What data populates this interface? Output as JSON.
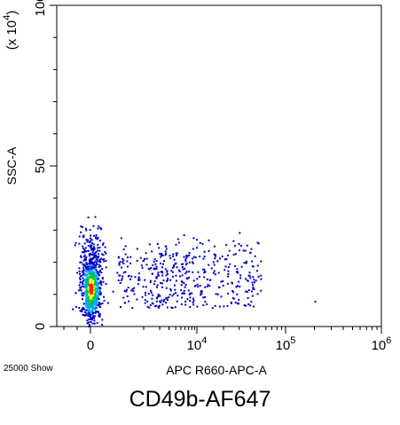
{
  "chart_data": {
    "type": "scatter",
    "title": "CD49b-AF647",
    "xlabel": "APC R660-APC-A",
    "ylabel": "SSC-A",
    "y_multiplier": "(x 10^4)",
    "events_shown": "25000 Show",
    "x_scale": "biexponential (linear near 0, log above)",
    "x_ticks": [
      "0",
      "10^4",
      "10^5",
      "10^6"
    ],
    "y_ticks": [
      "0",
      "50",
      "100"
    ],
    "y_units": "x 10^4",
    "ylim": [
      0,
      100
    ],
    "grid": false,
    "populations": [
      {
        "name": "",
        "x_center": 0,
        "y_center": 12,
        "note": "dense negative population (x ≈ 0, SSC ≈ 5–30 x10^4)"
      },
      {
        "name": "",
        "x_range": [
          500,
          50000
        ],
        "y_range": [
          6,
          30
        ],
        "note": "sparse positive events"
      }
    ],
    "outlier_points": [
      {
        "x": 200000,
        "y": 8
      }
    ],
    "density_colors": [
      "#0000c8",
      "#00aaff",
      "#00c040",
      "#ffff00",
      "#ff2000"
    ]
  }
}
